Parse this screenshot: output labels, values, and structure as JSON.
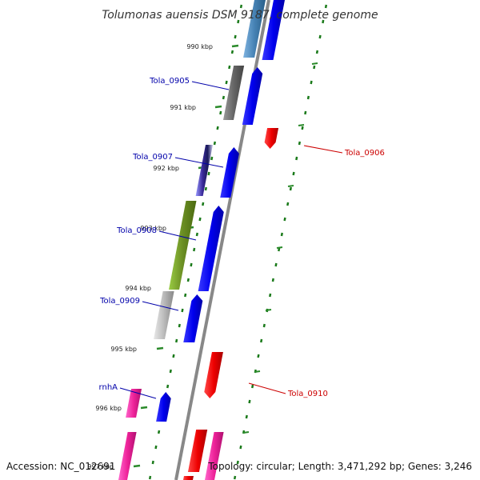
{
  "title": "Tolumonas auensis DSM 9187, complete genome",
  "footer": {
    "accession": "Accession: NC_012691",
    "stats": "Topology: circular; Length: 3,471,292 bp; Genes: 3,246"
  },
  "ticks": [
    {
      "label": "990 kbp"
    },
    {
      "label": "991 kbp"
    },
    {
      "label": "992 kbp"
    },
    {
      "label": "993 kbp"
    },
    {
      "label": "994 kbp"
    },
    {
      "label": "995 kbp"
    },
    {
      "label": "996 kbp"
    },
    {
      "label": "997 kbp"
    }
  ],
  "genes": [
    {
      "label": "Tola_0905",
      "strand": "forward"
    },
    {
      "label": "Tola_0906",
      "strand": "reverse"
    },
    {
      "label": "Tola_0907",
      "strand": "forward"
    },
    {
      "label": "Tola_0908",
      "strand": "forward"
    },
    {
      "label": "Tola_0909",
      "strand": "forward"
    },
    {
      "label": "Tola_0910",
      "strand": "reverse"
    },
    {
      "label": "rnhA",
      "strand": "forward"
    }
  ],
  "colors": {
    "forward_cds": "#0000ee",
    "reverse_cds": "#ee0000",
    "forward_label": "#0000aa",
    "reverse_label": "#cc0000",
    "backbone": "#888888",
    "ruler_ticks": "#1a7a1a",
    "tick_marks": "#2a8a2a"
  }
}
